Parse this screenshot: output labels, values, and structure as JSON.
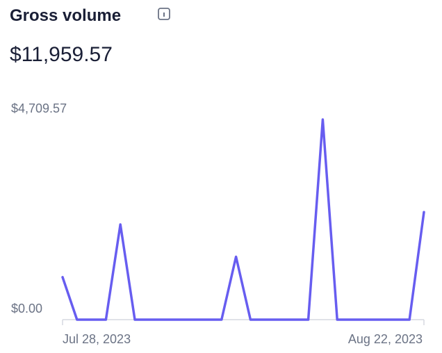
{
  "chart_data": {
    "type": "line",
    "title": "Gross volume",
    "total": "$11,959.57",
    "categories": [
      "Jul 28, 2023",
      null,
      null,
      null,
      null,
      null,
      null,
      null,
      null,
      null,
      null,
      null,
      null,
      null,
      null,
      null,
      null,
      null,
      null,
      null,
      null,
      null,
      null,
      null,
      null,
      "Aug 22, 2023"
    ],
    "series": [
      {
        "name": "Gross volume",
        "color": "#675df0",
        "values": [
          1000,
          0,
          0,
          0,
          2240,
          0,
          0,
          0,
          0,
          0,
          0,
          0,
          1480,
          0,
          0,
          0,
          0,
          0,
          4709.57,
          0,
          0,
          0,
          0,
          0,
          0,
          2530
        ]
      }
    ],
    "ylim": [
      0,
      4709.57
    ],
    "yticks": [
      {
        "value": 0,
        "label": "$0.00"
      },
      {
        "value": 4709.57,
        "label": "$4,709.57"
      }
    ]
  }
}
